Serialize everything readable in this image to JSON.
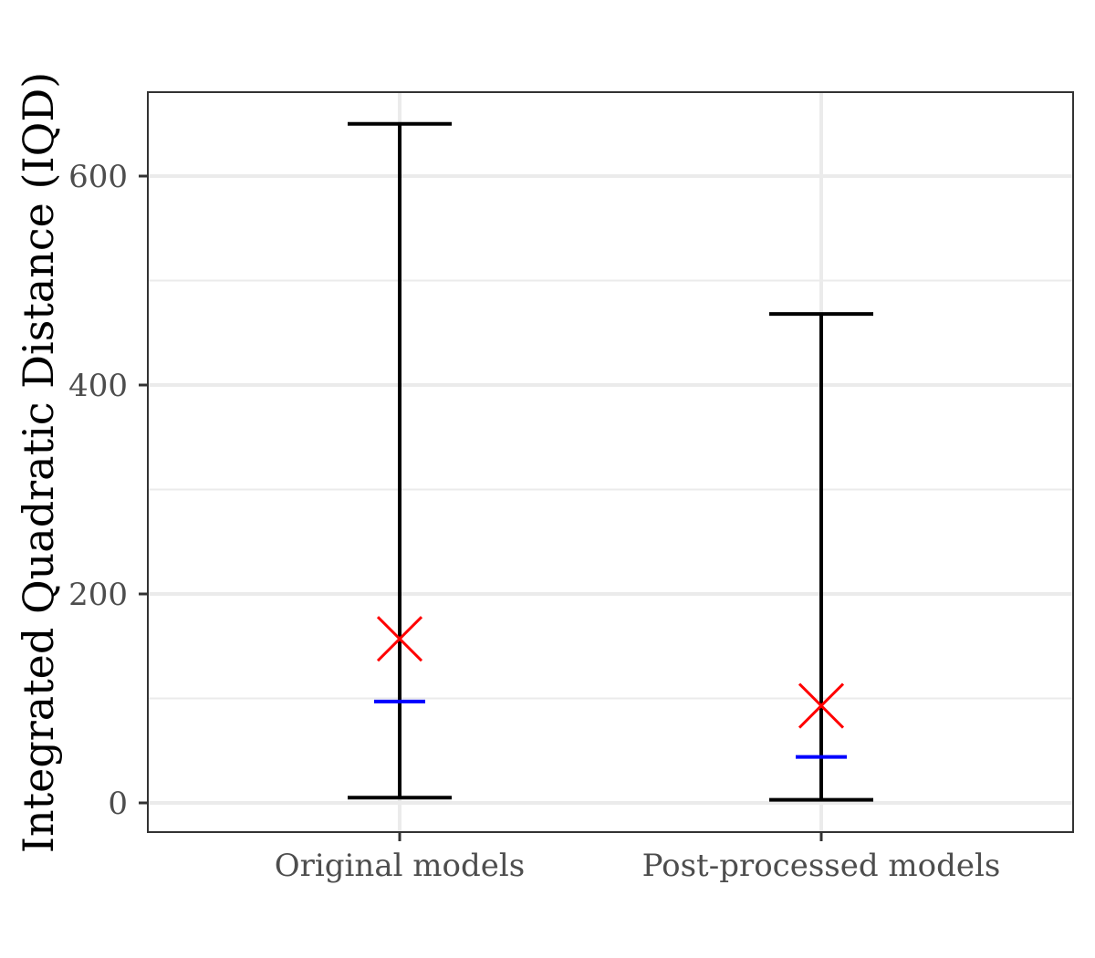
{
  "chart_data": {
    "type": "errorbar",
    "title": "",
    "xlabel": "",
    "ylabel": "Integrated Quadratic Distance (IQD)",
    "ylim": [
      -28,
      680
    ],
    "y_ticks": [
      0,
      200,
      400,
      600
    ],
    "y_minor_ticks": [
      100,
      300,
      500
    ],
    "grid": true,
    "legend": "none",
    "categories": [
      "Original models",
      "Post-processed models"
    ],
    "series": [
      {
        "min": [
          5,
          3
        ],
        "max": [
          650,
          468
        ],
        "mean": [
          157,
          93
        ],
        "median": [
          97,
          44
        ]
      }
    ],
    "colors": {
      "range": "#000000",
      "mean": "#ff0000",
      "median": "#0000ff",
      "grid": "#ebebeb",
      "panel_border": "#333333"
    }
  }
}
